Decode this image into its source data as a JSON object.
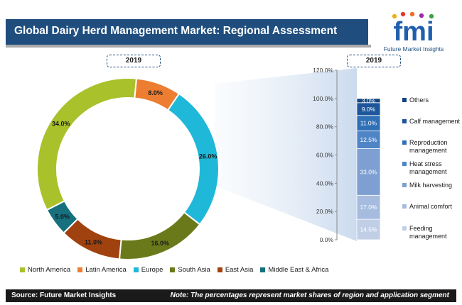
{
  "title": "Global Dairy Herd Management Market: Regional Assessment",
  "logo": {
    "mark": "fmi",
    "name": "Future Market Insights"
  },
  "year_left": "2019",
  "year_right": "2019",
  "footer": {
    "source": "Source: Future Market Insights",
    "note": "Note: The percentages represent market shares of region and application segment"
  },
  "chart_data": [
    {
      "type": "pie",
      "variant": "donut",
      "slices": [
        {
          "label": "North America",
          "value": 34.0,
          "display": "34.0%",
          "color": "#a9c12b"
        },
        {
          "label": "Latin America",
          "value": 8.0,
          "display": "8.0%",
          "color": "#ed7d31"
        },
        {
          "label": "Europe",
          "value": 26.0,
          "display": "26.0%",
          "color": "#1fb8d8"
        },
        {
          "label": "South Asia",
          "value": 16.0,
          "display": "16.0%",
          "color": "#6a7a1b"
        },
        {
          "label": "East Asia",
          "value": 11.0,
          "display": "11.0%",
          "color": "#a0420f"
        },
        {
          "label": "Middle East & Africa",
          "value": 5.0,
          "display": "5.0%",
          "color": "#16707e"
        }
      ],
      "legend_position": "bottom"
    },
    {
      "type": "bar",
      "variant": "stacked-100",
      "categories": [
        "2019"
      ],
      "ylim": [
        0,
        120
      ],
      "yticks": [
        "0.0%",
        "20.0%",
        "40.0%",
        "60.0%",
        "80.0%",
        "100.0%",
        "120.0%"
      ],
      "series": [
        {
          "name": "Feeding management",
          "values": [
            14.5
          ],
          "display": "14.5%",
          "color": "#c0cfe6"
        },
        {
          "name": "Animal comfort",
          "values": [
            17.0
          ],
          "display": "17.0%",
          "color": "#a6bcdf"
        },
        {
          "name": "Milk harvesting",
          "values": [
            33.0
          ],
          "display": "33.0%",
          "color": "#7d9fd1"
        },
        {
          "name": "Heat stress management",
          "values": [
            12.5
          ],
          "display": "12.5%",
          "color": "#4f85c6"
        },
        {
          "name": "Reproduction management",
          "values": [
            11.0
          ],
          "display": "11.0%",
          "color": "#2f70b7"
        },
        {
          "name": "Calf management",
          "values": [
            9.0
          ],
          "display": "9.0%",
          "color": "#1d569a"
        },
        {
          "name": "Others",
          "values": [
            3.0
          ],
          "display": "3.0%",
          "color": "#14467e"
        }
      ],
      "legend_position": "right"
    }
  ]
}
